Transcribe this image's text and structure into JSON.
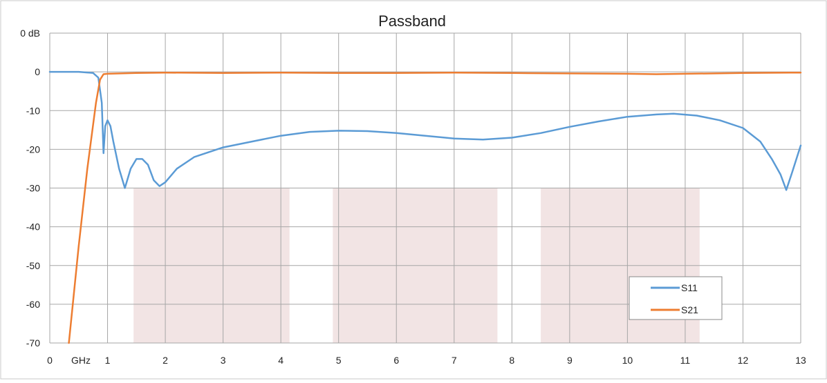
{
  "chart_data": {
    "type": "line",
    "title": "Passband",
    "xlabel": "GHz",
    "ylabel_unit_label": "0 dB",
    "xlim": [
      0,
      13
    ],
    "ylim": [
      -70,
      10
    ],
    "x_ticks": [
      "0",
      "1",
      "2",
      "3",
      "4",
      "5",
      "6",
      "7",
      "8",
      "9",
      "10",
      "11",
      "12",
      "13"
    ],
    "y_ticks": [
      "0 dB",
      "0",
      "-10",
      "-20",
      "-30",
      "-40",
      "-50",
      "-60",
      "-70"
    ],
    "y_tick_values": [
      10,
      0,
      -10,
      -20,
      -30,
      -40,
      -50,
      -60,
      -70
    ],
    "grid": true,
    "legend_position": "bottom-right",
    "shaded_regions": [
      {
        "x_start": 1.45,
        "x_end": 4.15,
        "y_top": -30,
        "y_bottom": -70,
        "color": "#f2e4e4"
      },
      {
        "x_start": 4.9,
        "x_end": 7.75,
        "y_top": -30,
        "y_bottom": -70,
        "color": "#f2e4e4"
      },
      {
        "x_start": 8.5,
        "x_end": 11.25,
        "y_top": -30,
        "y_bottom": -70,
        "color": "#f2e4e4"
      }
    ],
    "series": [
      {
        "name": "S11",
        "color": "#5b9bd5",
        "x": [
          0,
          0.5,
          0.75,
          0.84,
          0.9,
          0.93,
          0.96,
          1.0,
          1.05,
          1.1,
          1.2,
          1.3,
          1.4,
          1.5,
          1.6,
          1.7,
          1.8,
          1.9,
          2.0,
          2.2,
          2.5,
          3.0,
          3.5,
          4.0,
          4.5,
          5.0,
          5.5,
          6.0,
          6.5,
          7.0,
          7.5,
          8.0,
          8.5,
          9.0,
          9.5,
          10.0,
          10.5,
          10.8,
          11.2,
          11.6,
          12.0,
          12.3,
          12.5,
          12.65,
          12.75,
          12.85,
          13.0
        ],
        "y": [
          0,
          0,
          -0.3,
          -1.5,
          -8,
          -21,
          -14,
          -12.5,
          -14,
          -18,
          -25,
          -30,
          -25,
          -22.5,
          -22.5,
          -24,
          -28,
          -29.5,
          -28.5,
          -25,
          -22,
          -19.5,
          -18,
          -16.5,
          -15.5,
          -15.2,
          -15.3,
          -15.8,
          -16.5,
          -17.2,
          -17.5,
          -17,
          -15.8,
          -14.2,
          -12.8,
          -11.6,
          -11,
          -10.8,
          -11.3,
          -12.5,
          -14.5,
          -18,
          -22.5,
          -26.5,
          -30.5,
          -26,
          -19
        ]
      },
      {
        "name": "S21",
        "color": "#ed7d31",
        "x": [
          0.33,
          0.5,
          0.65,
          0.8,
          0.87,
          0.93,
          1.0,
          1.5,
          2.0,
          3.0,
          4.0,
          5.0,
          6.0,
          7.0,
          8.0,
          9.0,
          10.0,
          10.5,
          11.0,
          12.0,
          13.0
        ],
        "y": [
          -70,
          -45,
          -25,
          -8,
          -2,
          -0.6,
          -0.5,
          -0.3,
          -0.2,
          -0.3,
          -0.2,
          -0.3,
          -0.3,
          -0.2,
          -0.3,
          -0.4,
          -0.5,
          -0.6,
          -0.5,
          -0.3,
          -0.2
        ]
      }
    ]
  }
}
